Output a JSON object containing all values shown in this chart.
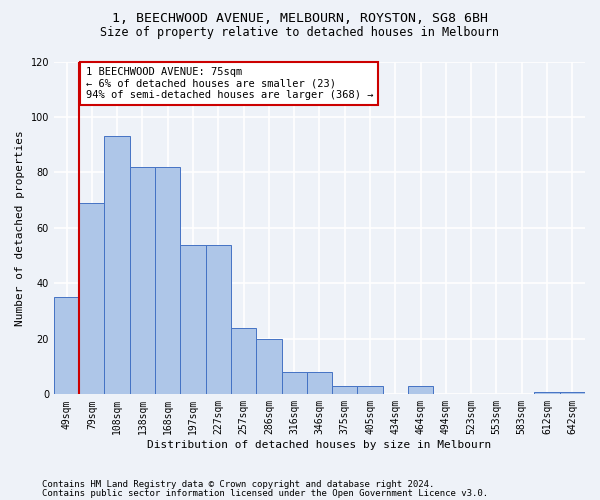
{
  "title_line1": "1, BEECHWOOD AVENUE, MELBOURN, ROYSTON, SG8 6BH",
  "title_line2": "Size of property relative to detached houses in Melbourn",
  "xlabel": "Distribution of detached houses by size in Melbourn",
  "ylabel": "Number of detached properties",
  "categories": [
    "49sqm",
    "79sqm",
    "108sqm",
    "138sqm",
    "168sqm",
    "197sqm",
    "227sqm",
    "257sqm",
    "286sqm",
    "316sqm",
    "346sqm",
    "375sqm",
    "405sqm",
    "434sqm",
    "464sqm",
    "494sqm",
    "523sqm",
    "553sqm",
    "583sqm",
    "612sqm",
    "642sqm"
  ],
  "values": [
    35,
    69,
    93,
    82,
    82,
    54,
    54,
    24,
    20,
    8,
    8,
    3,
    3,
    0,
    3,
    0,
    0,
    0,
    0,
    1,
    1
  ],
  "bar_color": "#aec6e8",
  "bar_edge_color": "#4472c4",
  "highlight_line_color": "#cc0000",
  "highlight_bar_index": 1,
  "annotation_text": "1 BEECHWOOD AVENUE: 75sqm\n← 6% of detached houses are smaller (23)\n94% of semi-detached houses are larger (368) →",
  "annotation_box_color": "#ffffff",
  "annotation_box_edge": "#cc0000",
  "ylim": [
    0,
    120
  ],
  "yticks": [
    0,
    20,
    40,
    60,
    80,
    100,
    120
  ],
  "footer_line1": "Contains HM Land Registry data © Crown copyright and database right 2024.",
  "footer_line2": "Contains public sector information licensed under the Open Government Licence v3.0.",
  "background_color": "#eef2f8",
  "grid_color": "#ffffff",
  "title_fontsize": 9.5,
  "subtitle_fontsize": 8.5,
  "axis_label_fontsize": 8,
  "tick_fontsize": 7,
  "annotation_fontsize": 7.5,
  "footer_fontsize": 6.5
}
